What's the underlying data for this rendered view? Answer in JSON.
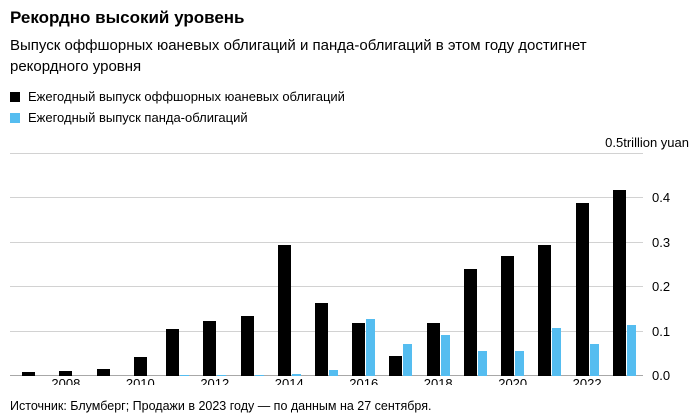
{
  "header": {
    "title": "Рекордно высокий уровень",
    "subtitle": "Выпуск оффшорных юаневых облигаций и панда-облигаций в этом году достигнет рекордного уровня"
  },
  "chart_data": {
    "type": "bar",
    "title": "Рекордно высокий уровень",
    "subtitle": "Выпуск оффшорных юаневых облигаций и панда-облигаций в этом году достигнет рекордного уровня",
    "unit_label": "0.5trillion yuan",
    "ylim": [
      0,
      0.5
    ],
    "yticks": [
      0,
      0.1,
      0.2,
      0.3,
      0.4,
      0.5
    ],
    "ytick_labels": [
      "0.0",
      "0.1",
      "0.2",
      "0.3",
      "0.4",
      ""
    ],
    "grid": true,
    "legend_position": "top-left",
    "categories": [
      2007,
      2008,
      2009,
      2010,
      2011,
      2012,
      2013,
      2014,
      2015,
      2016,
      2017,
      2018,
      2019,
      2020,
      2021,
      2022,
      2023
    ],
    "xtick_labels": [
      "2008",
      "2010",
      "2012",
      "2014",
      "2016",
      "2018",
      "2020",
      "2022"
    ],
    "series": [
      {
        "name": "Ежегодный выпуск оффшорных юаневых облигаций",
        "color": "#000000",
        "values": [
          0.01,
          0.012,
          0.016,
          0.042,
          0.105,
          0.125,
          0.135,
          0.295,
          0.165,
          0.12,
          0.046,
          0.12,
          0.24,
          0.27,
          0.295,
          0.39,
          0.42
        ]
      },
      {
        "name": "Ежегодный выпуск панда-облигаций",
        "color": "#55bdf0",
        "values": [
          0,
          0,
          0,
          0,
          0.002,
          0.002,
          0.003,
          0.004,
          0.013,
          0.128,
          0.072,
          0.093,
          0.056,
          0.056,
          0.108,
          0.072,
          0.115
        ]
      }
    ]
  },
  "footer": {
    "source": "Источник: Блумберг; Продажи в 2023 году — по данным на 27 сентября."
  }
}
